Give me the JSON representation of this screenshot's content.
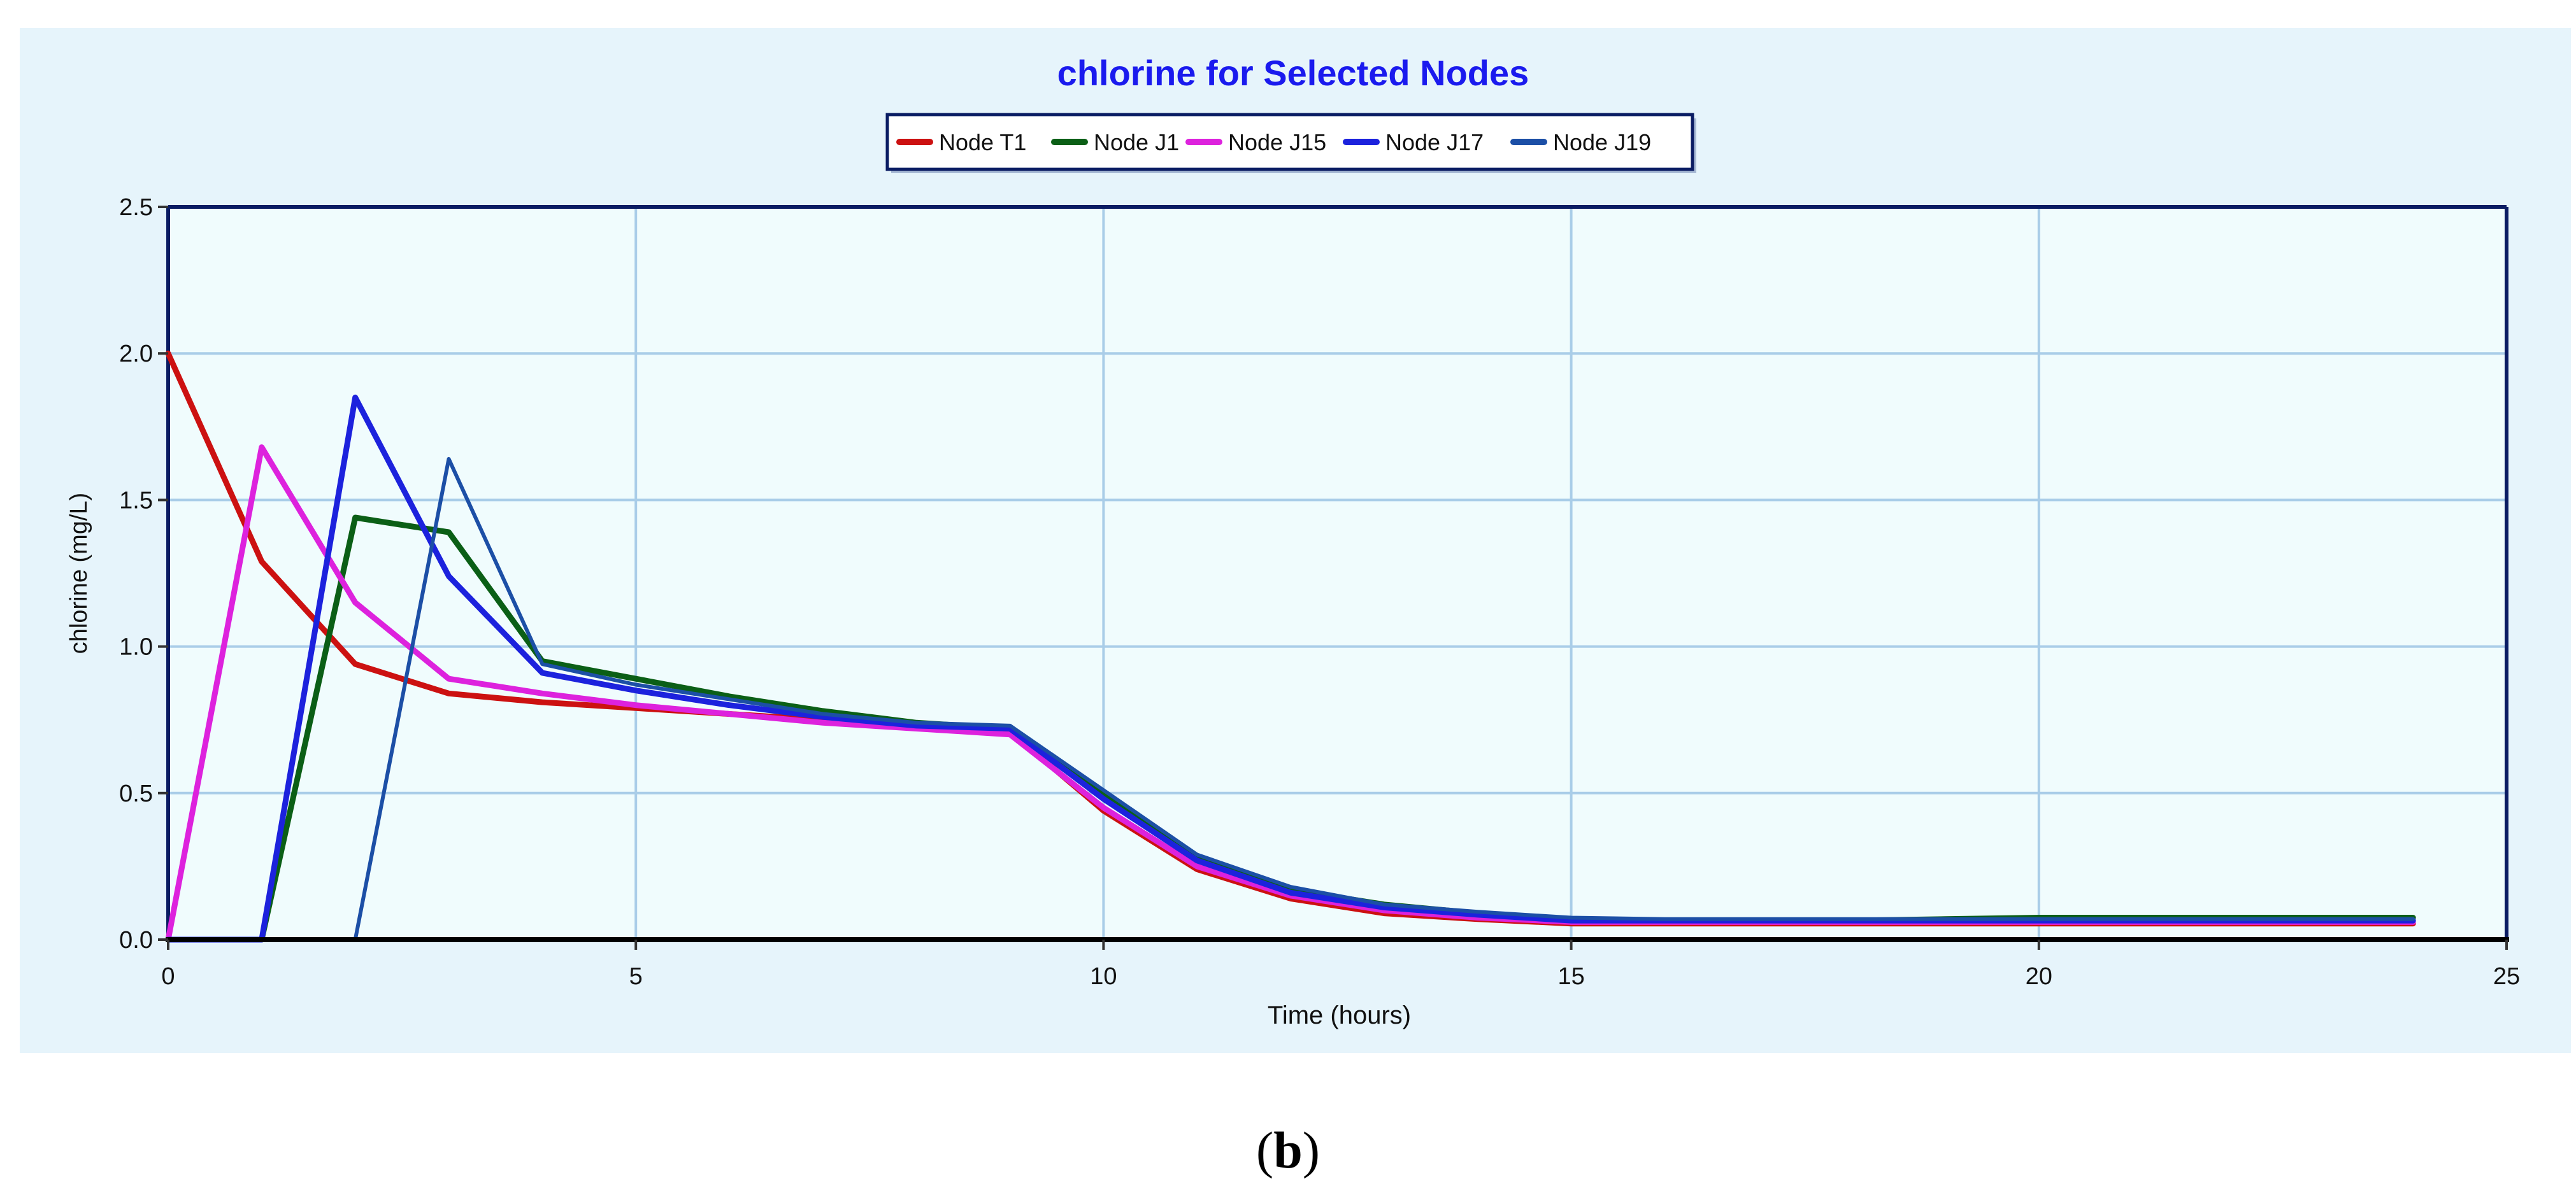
{
  "caption": {
    "open": "(",
    "letter": "b",
    "close": ")"
  },
  "colors": {
    "panel_bg": "#e6f4fb",
    "plot_bg": "#f0fcfd",
    "title": "#1a1aee",
    "grid": "#a9cde8",
    "frame": "#0a1c63"
  },
  "chart_data": {
    "type": "line",
    "title": "chlorine for Selected Nodes",
    "xlabel": "Time (hours)",
    "ylabel": "chlorine (mg/L)",
    "xlim": [
      0,
      25
    ],
    "ylim": [
      0,
      2.5
    ],
    "xticks": [
      0,
      5,
      10,
      15,
      20,
      25
    ],
    "yticks": [
      0.0,
      0.5,
      1.0,
      1.5,
      2.0,
      2.5
    ],
    "xtick_labels": [
      "0",
      "5",
      "10",
      "15",
      "20",
      "25"
    ],
    "ytick_labels": [
      "0.0",
      "0.5",
      "1.0",
      "1.5",
      "2.0",
      "2.5"
    ],
    "grid": true,
    "legend_position": "top-center",
    "series": [
      {
        "name": "Node T1",
        "color": "#cc1111",
        "x": [
          0,
          1,
          2,
          3,
          4,
          5,
          6,
          7,
          8,
          9,
          10,
          11,
          12,
          13,
          14,
          15,
          16,
          17,
          18,
          19,
          20,
          21,
          22,
          23,
          24
        ],
        "y": [
          2.0,
          1.29,
          0.94,
          0.84,
          0.81,
          0.79,
          0.77,
          0.75,
          0.73,
          0.71,
          0.44,
          0.24,
          0.14,
          0.09,
          0.07,
          0.055,
          0.055,
          0.055,
          0.055,
          0.055,
          0.055,
          0.055,
          0.055,
          0.055,
          0.055
        ]
      },
      {
        "name": "Node J1",
        "color": "#0b5f16",
        "x": [
          0,
          1,
          2,
          3,
          4,
          5,
          6,
          7,
          8,
          9,
          10,
          11,
          12,
          13,
          14,
          15,
          16,
          17,
          18,
          19,
          20,
          21,
          22,
          23,
          24
        ],
        "y": [
          0.0,
          0.0,
          1.44,
          1.39,
          0.95,
          0.89,
          0.83,
          0.78,
          0.74,
          0.72,
          0.5,
          0.28,
          0.17,
          0.12,
          0.09,
          0.07,
          0.065,
          0.065,
          0.065,
          0.07,
          0.075,
          0.075,
          0.075,
          0.075,
          0.075
        ]
      },
      {
        "name": "Node J15",
        "color": "#dd22dd",
        "x": [
          0,
          1,
          2,
          3,
          4,
          5,
          6,
          7,
          8,
          9,
          10,
          11,
          12,
          13,
          14,
          15,
          16,
          17,
          18,
          19,
          20,
          21,
          22,
          23,
          24
        ],
        "y": [
          0.0,
          1.68,
          1.15,
          0.89,
          0.84,
          0.8,
          0.77,
          0.74,
          0.72,
          0.7,
          0.45,
          0.25,
          0.15,
          0.1,
          0.075,
          0.06,
          0.06,
          0.06,
          0.06,
          0.06,
          0.06,
          0.06,
          0.06,
          0.06,
          0.06
        ]
      },
      {
        "name": "Node J17",
        "color": "#1c22dd",
        "x": [
          0,
          1,
          2,
          3,
          4,
          5,
          6,
          7,
          8,
          9,
          10,
          11,
          12,
          13,
          14,
          15,
          16,
          17,
          18,
          19,
          20,
          21,
          22,
          23,
          24
        ],
        "y": [
          0.0,
          0.0,
          1.85,
          1.24,
          0.91,
          0.85,
          0.8,
          0.76,
          0.73,
          0.72,
          0.48,
          0.27,
          0.16,
          0.11,
          0.085,
          0.065,
          0.065,
          0.065,
          0.065,
          0.065,
          0.065,
          0.065,
          0.065,
          0.065,
          0.065
        ]
      },
      {
        "name": "Node J19",
        "color": "#1c4fa6",
        "x": [
          0,
          1,
          2,
          3,
          4,
          5,
          6,
          7,
          8,
          9,
          10,
          11,
          12,
          13,
          14,
          15,
          16,
          17,
          18,
          19,
          20,
          21,
          22,
          23,
          24
        ],
        "y": [
          0.0,
          0.0,
          0.0,
          1.64,
          0.94,
          0.87,
          0.82,
          0.77,
          0.74,
          0.73,
          0.51,
          0.29,
          0.18,
          0.12,
          0.095,
          0.075,
          0.07,
          0.07,
          0.07,
          0.07,
          0.07,
          0.07,
          0.07,
          0.07,
          0.07
        ]
      }
    ]
  }
}
